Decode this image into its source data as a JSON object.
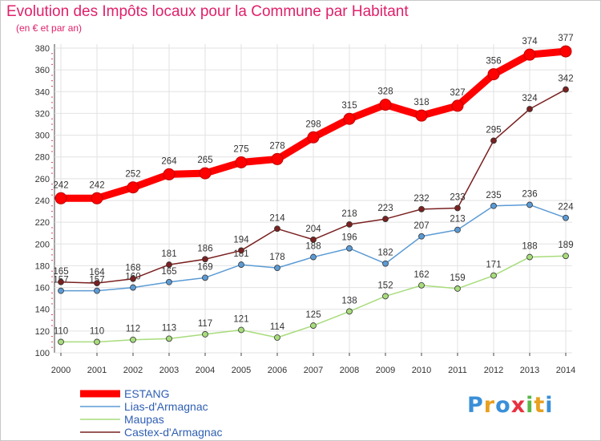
{
  "title": "Evolution des Impôts locaux pour la Commune par Habitant",
  "subtitle": "(en € et par an)",
  "logo": "Proxiti",
  "chart_data": {
    "type": "line",
    "title": "Evolution des Impôts locaux pour la Commune par Habitant",
    "subtitle": "(en € et par an)",
    "xlabel": "",
    "ylabel": "",
    "x": [
      2000,
      2001,
      2002,
      2003,
      2004,
      2005,
      2006,
      2007,
      2008,
      2009,
      2010,
      2011,
      2012,
      2013,
      2014
    ],
    "ylim": [
      100,
      380
    ],
    "yticks": [
      100,
      120,
      140,
      160,
      180,
      200,
      220,
      240,
      260,
      280,
      300,
      320,
      340,
      360,
      380
    ],
    "grid": true,
    "legend": "bottom-left",
    "series": [
      {
        "name": "ESTANG",
        "color": "#ff0000",
        "values": [
          242,
          242,
          252,
          264,
          265,
          275,
          278,
          298,
          315,
          328,
          318,
          327,
          356,
          374,
          377
        ]
      },
      {
        "name": "Lias-d'Armagnac",
        "color": "#5b9bd5",
        "values": [
          157,
          157,
          160,
          165,
          169,
          181,
          178,
          188,
          196,
          182,
          207,
          213,
          235,
          236,
          224
        ]
      },
      {
        "name": "Maupas",
        "color": "#a8dc7c",
        "values": [
          110,
          110,
          112,
          113,
          117,
          121,
          114,
          125,
          138,
          152,
          162,
          159,
          171,
          188,
          189
        ]
      },
      {
        "name": "Castex-d'Armagnac",
        "color": "#7a2020",
        "values": [
          165,
          164,
          168,
          181,
          186,
          194,
          214,
          204,
          218,
          223,
          232,
          233,
          295,
          324,
          342
        ]
      }
    ]
  }
}
